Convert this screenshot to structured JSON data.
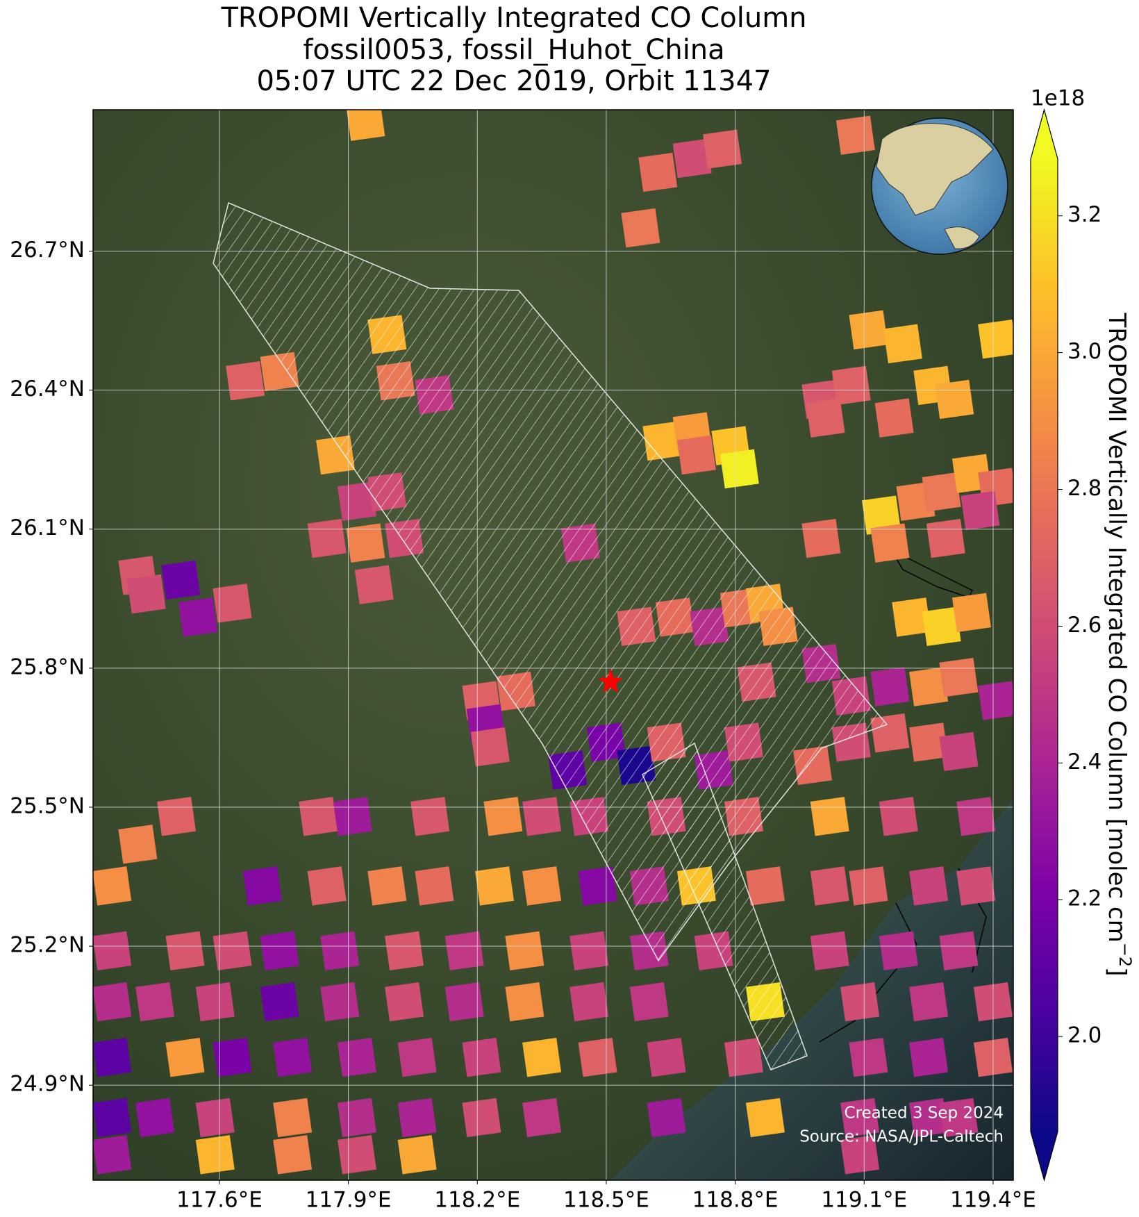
{
  "chart_data": {
    "type": "map",
    "title": [
      "TROPOMI Vertically Integrated CO Column",
      "fossil0053, fossil_Huhot_China",
      "05:07 UTC 22 Dec 2019, Orbit 11347"
    ],
    "xlim": [
      117.306,
      119.447
    ],
    "ylim": [
      24.695,
      27.005
    ],
    "xticks": [
      {
        "value": 117.6,
        "label": "117.6°E"
      },
      {
        "value": 117.9,
        "label": "117.9°E"
      },
      {
        "value": 118.2,
        "label": "118.2°E"
      },
      {
        "value": 118.5,
        "label": "118.5°E"
      },
      {
        "value": 118.8,
        "label": "118.8°E"
      },
      {
        "value": 119.1,
        "label": "119.1°E"
      },
      {
        "value": 119.4,
        "label": "119.4°E"
      }
    ],
    "yticks": [
      {
        "value": 24.9,
        "label": "24.9°N"
      },
      {
        "value": 25.2,
        "label": "25.2°N"
      },
      {
        "value": 25.5,
        "label": "25.5°N"
      },
      {
        "value": 25.8,
        "label": "25.8°N"
      },
      {
        "value": 26.1,
        "label": "26.1°N"
      },
      {
        "value": 26.4,
        "label": "26.4°N"
      },
      {
        "value": 26.7,
        "label": "26.7°N"
      }
    ],
    "grid": true,
    "colormap": "plasma",
    "clim": [
      1.861,
      3.283
    ],
    "colorbar": {
      "label": "TROPOMI Vertically Integrated CO Column [molec cm",
      "label_superscript": "−2",
      "label_suffix": "]",
      "offset_text": "1e18",
      "ticks": [
        {
          "value": 2.0,
          "label": "2.0"
        },
        {
          "value": 2.2,
          "label": "2.2"
        },
        {
          "value": 2.4,
          "label": "2.4"
        },
        {
          "value": 2.6,
          "label": "2.6"
        },
        {
          "value": 2.8,
          "label": "2.8"
        },
        {
          "value": 3.0,
          "label": "3.0"
        },
        {
          "value": 3.2,
          "label": "3.2"
        }
      ]
    },
    "source": {
      "lon": 118.51,
      "lat": 25.77,
      "color": "#ff0000"
    },
    "credits": [
      "Created 3 Sep 2024",
      "Source: NASA/JPL-Caltech"
    ],
    "cells": {
      "lon": [
        117.94,
        119.08,
        118.62,
        118.7,
        118.77,
        118.58,
        117.99,
        117.66,
        117.74,
        118.01,
        118.1,
        119.11,
        119.19,
        119.41,
        119.0,
        119.07,
        119.26,
        119.31,
        119.01,
        119.17,
        118.63,
        118.7,
        118.79,
        118.81,
        118.71,
        117.87,
        117.92,
        117.99,
        117.85,
        117.94,
        118.03,
        117.96,
        118.44,
        117.41,
        117.51,
        117.43,
        117.55,
        117.63,
        119.0,
        119.14,
        119.22,
        119.28,
        119.35,
        119.41,
        119.16,
        119.29,
        119.37,
        118.57,
        118.66,
        118.74,
        118.81,
        118.87,
        118.9,
        119.0,
        118.85,
        119.21,
        119.28,
        119.35,
        118.21,
        118.29,
        118.22,
        118.23,
        118.41,
        118.5,
        118.57,
        118.64,
        118.75,
        118.82,
        119.07,
        119.16,
        119.25,
        119.32,
        119.41,
        118.98,
        119.07,
        119.16,
        119.25,
        119.32,
        117.5,
        117.83,
        117.91,
        118.09,
        118.26,
        118.35,
        118.46,
        118.64,
        118.82,
        119.02,
        119.18,
        119.36,
        117.41,
        117.35,
        117.7,
        117.85,
        117.99,
        118.1,
        118.24,
        118.35,
        118.48,
        118.6,
        118.71,
        118.87,
        119.02,
        119.11,
        119.25,
        119.36,
        117.35,
        117.52,
        117.63,
        117.74,
        117.88,
        118.03,
        118.17,
        118.31,
        118.46,
        118.6,
        118.75,
        119.02,
        119.18,
        119.32,
        117.35,
        117.45,
        117.59,
        117.74,
        117.88,
        118.03,
        118.17,
        118.31,
        118.46,
        118.6,
        118.87,
        119.09,
        119.25,
        119.4,
        117.35,
        117.52,
        117.63,
        117.77,
        117.92,
        118.06,
        118.21,
        118.35,
        118.48,
        118.64,
        118.82,
        119.11,
        119.25,
        119.4,
        117.35,
        117.45,
        117.59,
        117.77,
        117.92,
        118.06,
        118.21,
        118.35,
        118.64,
        118.87,
        119.09,
        119.25,
        119.32,
        117.35,
        117.59,
        117.77,
        117.92,
        118.06,
        119.09
      ],
      "lat": [
        26.98,
        26.95,
        26.87,
        26.9,
        26.92,
        26.75,
        26.52,
        26.42,
        26.44,
        26.42,
        26.39,
        26.53,
        26.5,
        26.51,
        26.38,
        26.41,
        26.41,
        26.38,
        26.34,
        26.34,
        26.29,
        26.31,
        26.28,
        26.23,
        26.26,
        26.26,
        26.16,
        26.18,
        26.08,
        26.07,
        26.08,
        25.98,
        26.07,
        26.0,
        25.99,
        25.96,
        25.91,
        25.94,
        26.08,
        26.13,
        26.16,
        26.18,
        26.22,
        26.19,
        26.07,
        26.08,
        26.14,
        25.89,
        25.91,
        25.89,
        25.93,
        25.94,
        25.89,
        25.81,
        25.77,
        25.91,
        25.89,
        25.92,
        25.73,
        25.75,
        25.68,
        25.63,
        25.58,
        25.64,
        25.59,
        25.64,
        25.58,
        25.64,
        25.74,
        25.76,
        25.76,
        25.78,
        25.73,
        25.59,
        25.64,
        25.66,
        25.64,
        25.62,
        25.48,
        25.48,
        25.48,
        25.48,
        25.48,
        25.48,
        25.48,
        25.48,
        25.48,
        25.48,
        25.48,
        25.48,
        25.42,
        25.33,
        25.33,
        25.33,
        25.33,
        25.33,
        25.33,
        25.33,
        25.33,
        25.33,
        25.33,
        25.33,
        25.33,
        25.33,
        25.33,
        25.33,
        25.19,
        25.19,
        25.19,
        25.19,
        25.19,
        25.19,
        25.19,
        25.19,
        25.19,
        25.19,
        25.19,
        25.19,
        25.19,
        25.19,
        25.08,
        25.08,
        25.08,
        25.08,
        25.08,
        25.08,
        25.08,
        25.08,
        25.08,
        25.08,
        25.08,
        25.08,
        25.08,
        25.08,
        24.96,
        24.96,
        24.96,
        24.96,
        24.96,
        24.96,
        24.96,
        24.96,
        24.96,
        24.96,
        24.96,
        24.96,
        24.96,
        24.96,
        24.83,
        24.83,
        24.83,
        24.83,
        24.83,
        24.83,
        24.83,
        24.83,
        24.83,
        24.83,
        24.83,
        24.83,
        24.83,
        24.75,
        24.75,
        24.75,
        24.75,
        24.75,
        24.75
      ],
      "values": [
        3.0,
        2.8,
        2.75,
        2.6,
        2.7,
        2.8,
        3.05,
        2.7,
        2.85,
        2.8,
        2.5,
        3.0,
        3.05,
        3.1,
        2.65,
        2.7,
        3.05,
        3.0,
        2.7,
        2.75,
        3.05,
        2.95,
        3.1,
        3.25,
        2.75,
        3.0,
        2.55,
        2.6,
        2.65,
        2.85,
        2.6,
        2.65,
        2.5,
        2.65,
        2.15,
        2.6,
        2.3,
        2.65,
        2.75,
        3.15,
        2.85,
        2.8,
        3.0,
        2.75,
        2.85,
        2.7,
        2.55,
        2.7,
        2.75,
        2.45,
        2.8,
        3.0,
        2.9,
        2.45,
        2.65,
        3.05,
        3.15,
        2.95,
        2.7,
        2.75,
        2.3,
        2.65,
        2.1,
        2.2,
        1.9,
        2.7,
        2.35,
        2.6,
        2.55,
        2.4,
        2.9,
        2.8,
        2.4,
        2.75,
        2.6,
        2.7,
        2.75,
        2.55,
        2.7,
        2.65,
        2.35,
        2.65,
        2.9,
        2.6,
        2.55,
        2.6,
        2.7,
        3.0,
        2.6,
        2.5,
        2.85,
        2.9,
        2.25,
        2.7,
        2.85,
        2.75,
        3.0,
        2.9,
        2.25,
        2.45,
        3.1,
        2.75,
        2.65,
        2.7,
        2.55,
        2.6,
        2.55,
        2.65,
        2.6,
        2.3,
        2.4,
        2.65,
        2.5,
        2.9,
        2.55,
        2.45,
        2.55,
        2.55,
        2.45,
        2.5,
        2.45,
        2.5,
        2.55,
        2.15,
        2.45,
        2.6,
        2.45,
        2.9,
        2.55,
        2.5,
        3.2,
        2.6,
        2.5,
        2.6,
        2.1,
        2.95,
        2.2,
        2.3,
        2.4,
        2.5,
        2.55,
        3.05,
        2.7,
        2.55,
        2.6,
        2.5,
        2.4,
        2.7,
        2.1,
        2.3,
        2.55,
        2.85,
        2.45,
        2.4,
        2.6,
        2.5,
        2.35,
        3.05,
        2.5,
        2.45,
        2.5,
        2.35,
        3.05,
        2.85,
        2.6,
        3.0,
        2.55
      ]
    }
  }
}
